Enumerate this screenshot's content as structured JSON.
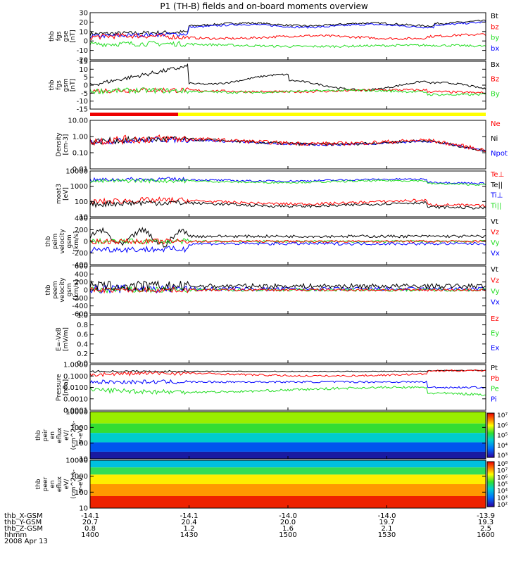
{
  "title": "P1 (TH-B) fields and on-board moments overview",
  "colors": {
    "black": "#000000",
    "red": "#ff0000",
    "green": "#22dd22",
    "blue": "#0000ff",
    "yellow": "#ffff00",
    "mode_red": "#ee0000"
  },
  "panels": [
    {
      "ylabel": [
        "thb",
        "fgs",
        "gse",
        "[nT]"
      ],
      "ticks": [
        "30",
        "20",
        "10",
        "0",
        "-10",
        "-20"
      ],
      "legend": [
        {
          "t": "Bt",
          "c": "black"
        },
        {
          "t": "bz",
          "c": "red"
        },
        {
          "t": "by",
          "c": "green"
        },
        {
          "t": "bx",
          "c": "blue"
        }
      ]
    },
    {
      "ylabel": [
        "thb",
        "fgs",
        "gsm",
        "[nT]"
      ],
      "ticks": [
        "15",
        "10",
        "5",
        "0",
        "-5",
        "-10",
        "-15"
      ],
      "legend": [
        {
          "t": "Bx",
          "c": "black"
        },
        {
          "t": "Bz",
          "c": "red"
        },
        {
          "t": "By",
          "c": "green"
        }
      ]
    },
    {
      "ylabel": [
        "Density",
        "[cm-3]"
      ],
      "ticks": [
        "10.00",
        "1.00",
        "0.10",
        "0.01"
      ],
      "legend": [
        {
          "t": "Ne",
          "c": "red"
        },
        {
          "t": "Ni",
          "c": "black"
        },
        {
          "t": "Npot",
          "c": "blue"
        }
      ]
    },
    {
      "ylabel": [
        "moat3",
        "[eV]"
      ],
      "ticks": [
        "10000",
        "1000",
        "100",
        "10"
      ],
      "legend": [
        {
          "t": "Te⊥",
          "c": "red"
        },
        {
          "t": "Te||",
          "c": "black"
        },
        {
          "t": "Ti⊥",
          "c": "blue"
        },
        {
          "t": "Ti||",
          "c": "green"
        }
      ]
    },
    {
      "ylabel": [
        "thb",
        "peim",
        "velocity",
        "gsm",
        "[km/s]"
      ],
      "ticks": [
        "400",
        "200",
        "0",
        "-200",
        "-400"
      ],
      "legend": [
        {
          "t": "Vt",
          "c": "black"
        },
        {
          "t": "Vz",
          "c": "red"
        },
        {
          "t": "Vy",
          "c": "green"
        },
        {
          "t": "Vx",
          "c": "blue"
        }
      ]
    },
    {
      "ylabel": [
        "thb",
        "peem",
        "velocity",
        "gsm",
        "[km/s]"
      ],
      "ticks": [
        "600",
        "400",
        "200",
        "0",
        "-200",
        "-400",
        "-600"
      ],
      "legend": [
        {
          "t": "Vt",
          "c": "black"
        },
        {
          "t": "Vz",
          "c": "red"
        },
        {
          "t": "Vy",
          "c": "green"
        },
        {
          "t": "Vx",
          "c": "blue"
        }
      ]
    },
    {
      "ylabel": [
        "E=-VxB",
        "[mV/m]"
      ],
      "ticks": [
        "1.0",
        "0.8",
        "0.6",
        "0.4",
        "0.2",
        "0.0"
      ],
      "legend": [
        {
          "t": "Ez",
          "c": "red"
        },
        {
          "t": "Ey",
          "c": "green"
        },
        {
          "t": "Ex",
          "c": "blue"
        }
      ]
    },
    {
      "ylabel": [
        "Pressure",
        "[nPa]"
      ],
      "ticks": [
        "1.0000",
        "0.1000",
        "0.0100",
        "0.0010",
        "0.0001"
      ],
      "legend": [
        {
          "t": "Pt",
          "c": "black"
        },
        {
          "t": "Pb",
          "c": "red"
        },
        {
          "t": "Pe",
          "c": "green"
        },
        {
          "t": "Pi",
          "c": "blue"
        }
      ]
    },
    {
      "ylabel": [
        "thb",
        "peir",
        "en",
        "eflux",
        "eV/",
        "(cm^2-s-",
        "sr-eV)"
      ],
      "ticks": [
        "10000",
        "1000",
        "100",
        "10"
      ],
      "cbar": [
        "10⁷",
        "10⁶",
        "10⁵",
        "10⁴",
        "10³"
      ]
    },
    {
      "ylabel": [
        "thb",
        "peer",
        "en",
        "eflux",
        "eV/",
        "(cm^2-s-",
        "sr-eV)"
      ],
      "ticks": [
        "10000",
        "1000",
        "100",
        "10"
      ],
      "cbar": [
        "10⁸",
        "10⁷",
        "10⁶",
        "10⁵",
        "10⁴",
        "10³",
        "10²"
      ]
    }
  ],
  "footer": {
    "rows": [
      {
        "label": "thb_X-GSM",
        "values": [
          "-14.1",
          "-14.1",
          "-14.0",
          "-14.0",
          "-13.9"
        ]
      },
      {
        "label": "thb_Y-GSM",
        "values": [
          "20.7",
          "20.4",
          "20.0",
          "19.7",
          "19.3"
        ]
      },
      {
        "label": "thb_Z-GSM",
        "values": [
          "0.8",
          "1.2",
          "1.6",
          "2.1",
          "2.5"
        ]
      },
      {
        "label": "hhmm",
        "values": [
          "1400",
          "1430",
          "1500",
          "1530",
          "1600"
        ]
      }
    ],
    "date": "2008 Apr 13"
  },
  "chart_data": {
    "type": "line",
    "title": "P1 (TH-B) fields and on-board moments overview",
    "x": [
      "1400",
      "1430",
      "1500",
      "1530",
      "1600"
    ],
    "xlabel": "hhmm",
    "date": "2008 Apr 13",
    "series": [
      {
        "name": "Bt",
        "panel": 1,
        "values": [
          10,
          20,
          17,
          18,
          21
        ]
      },
      {
        "name": "bz",
        "panel": 1,
        "values": [
          3,
          0,
          -1,
          2,
          5
        ]
      },
      {
        "name": "by",
        "panel": 1,
        "values": [
          -5,
          -8,
          -10,
          -9,
          -12
        ]
      },
      {
        "name": "bx",
        "panel": 1,
        "values": [
          7,
          19,
          16,
          17,
          20
        ]
      },
      {
        "name": "Bx",
        "panel": 2,
        "values": [
          5,
          7,
          3,
          2,
          -1
        ]
      },
      {
        "name": "Bz",
        "panel": 2,
        "values": [
          0,
          -1,
          -1,
          -1,
          -2
        ]
      },
      {
        "name": "Ni",
        "panel": 3,
        "values": [
          0.5,
          0.4,
          0.25,
          0.3,
          0.1
        ]
      },
      {
        "name": "Ti||",
        "panel": 4,
        "values": [
          1500,
          1400,
          1300,
          1400,
          900
        ]
      },
      {
        "name": "Te||",
        "panel": 4,
        "values": [
          60,
          55,
          60,
          80,
          40
        ]
      }
    ]
  }
}
